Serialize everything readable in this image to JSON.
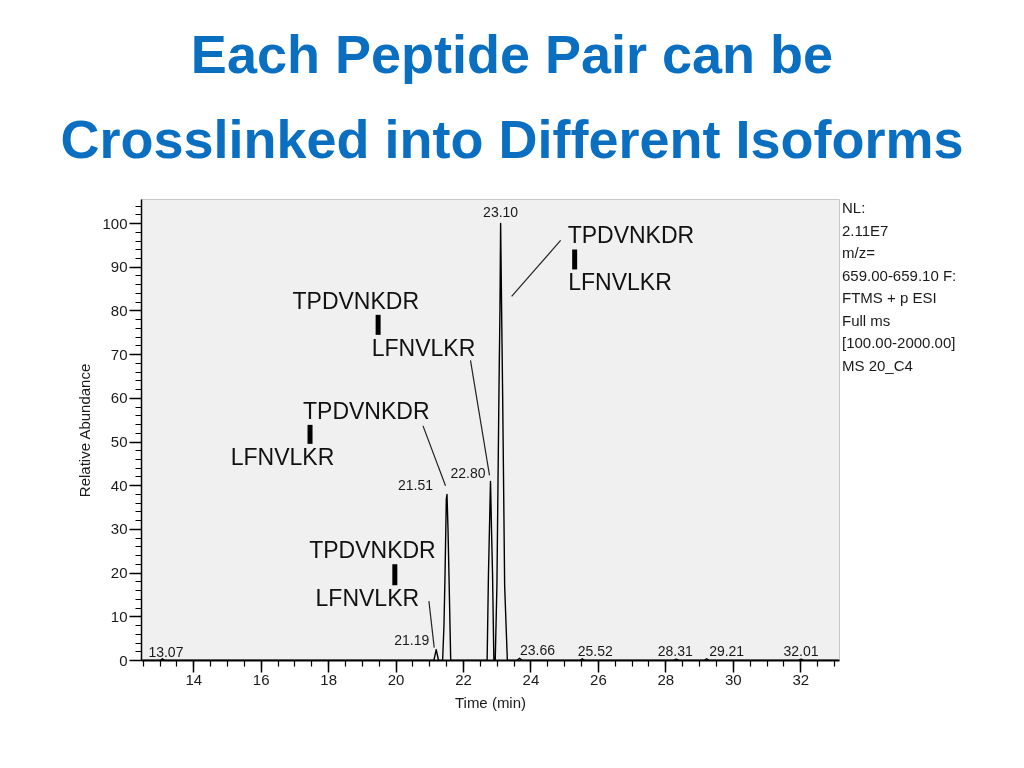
{
  "chart_data": {
    "type": "line",
    "title": "Each Peptide Pair can be\nCrosslinked into Different Isoforms",
    "xlabel": "Time (min)",
    "ylabel": "Relative Abundance",
    "xlim": [
      12.45,
      33.15
    ],
    "ylim": [
      0,
      105.5
    ],
    "xticks": [
      14,
      16,
      18,
      20,
      22,
      24,
      26,
      28,
      30,
      32
    ],
    "yticks": [
      0,
      10,
      20,
      30,
      40,
      50,
      60,
      70,
      80,
      90,
      100
    ],
    "grid": false,
    "series": [
      {
        "color": "#000000",
        "x": [
          12.5,
          13.0,
          13.07,
          13.15,
          21.12,
          21.19,
          21.26,
          21.38,
          21.42,
          21.45,
          21.49,
          21.51,
          21.54,
          21.57,
          21.62,
          22.7,
          22.74,
          22.8,
          22.83,
          22.86,
          22.9,
          22.94,
          22.99,
          23.05,
          23.08,
          23.1,
          23.13,
          23.16,
          23.22,
          23.3,
          23.58,
          23.66,
          23.74,
          25.44,
          25.52,
          25.6,
          28.23,
          28.31,
          28.39,
          29.13,
          29.21,
          29.29,
          31.93,
          32.01,
          32.09,
          33.1
        ],
        "values": [
          0,
          0,
          0.4,
          0,
          0,
          2.5,
          0,
          0,
          8,
          19,
          37,
          38,
          30,
          19,
          0,
          0,
          20,
          41,
          30,
          20,
          0,
          0,
          17,
          61,
          80,
          100,
          80,
          61,
          17,
          0,
          0,
          0.5,
          0,
          0,
          0.4,
          0,
          0,
          0.3,
          0,
          0,
          0.4,
          0,
          0,
          0.3,
          0,
          0
        ]
      }
    ],
    "annotations": [
      {
        "text": "13.07",
        "x": 13.07,
        "y": 0.4
      },
      {
        "text": "21.19",
        "x": 21.19,
        "y": 2.5
      },
      {
        "text": "21.51",
        "x": 21.51,
        "y": 38
      },
      {
        "text": "22.80",
        "x": 22.8,
        "y": 41
      },
      {
        "text": "23.10",
        "x": 23.1,
        "y": 100
      },
      {
        "text": "23.66",
        "x": 23.66,
        "y": 0.5
      },
      {
        "text": "25.52",
        "x": 25.52,
        "y": 0.4
      },
      {
        "text": "28.31",
        "x": 28.31,
        "y": 0.3
      },
      {
        "text": "29.21",
        "x": 29.21,
        "y": 0.4
      },
      {
        "text": "32.01",
        "x": 32.01,
        "y": 0.3
      },
      {
        "text": "TPDVNKDR\nLFNVLKR",
        "x": 23.13,
        "y": 80
      },
      {
        "text": "TPDVNKDR\nLFNVLKR",
        "x": 22.8,
        "y": 41
      },
      {
        "text": "TPDVNKDR\nLFNVLKR",
        "x": 21.51,
        "y": 38
      },
      {
        "text": "TPDVNKDR\nLFNVLKR",
        "x": 21.19,
        "y": 2.5
      },
      "NL:\n2.11E7\nm/z=\n659.00-659.10 F:\nFTMS + p ESI\nFull ms\n[100.00-2000.00]\nMS 20_C4"
    ]
  }
}
